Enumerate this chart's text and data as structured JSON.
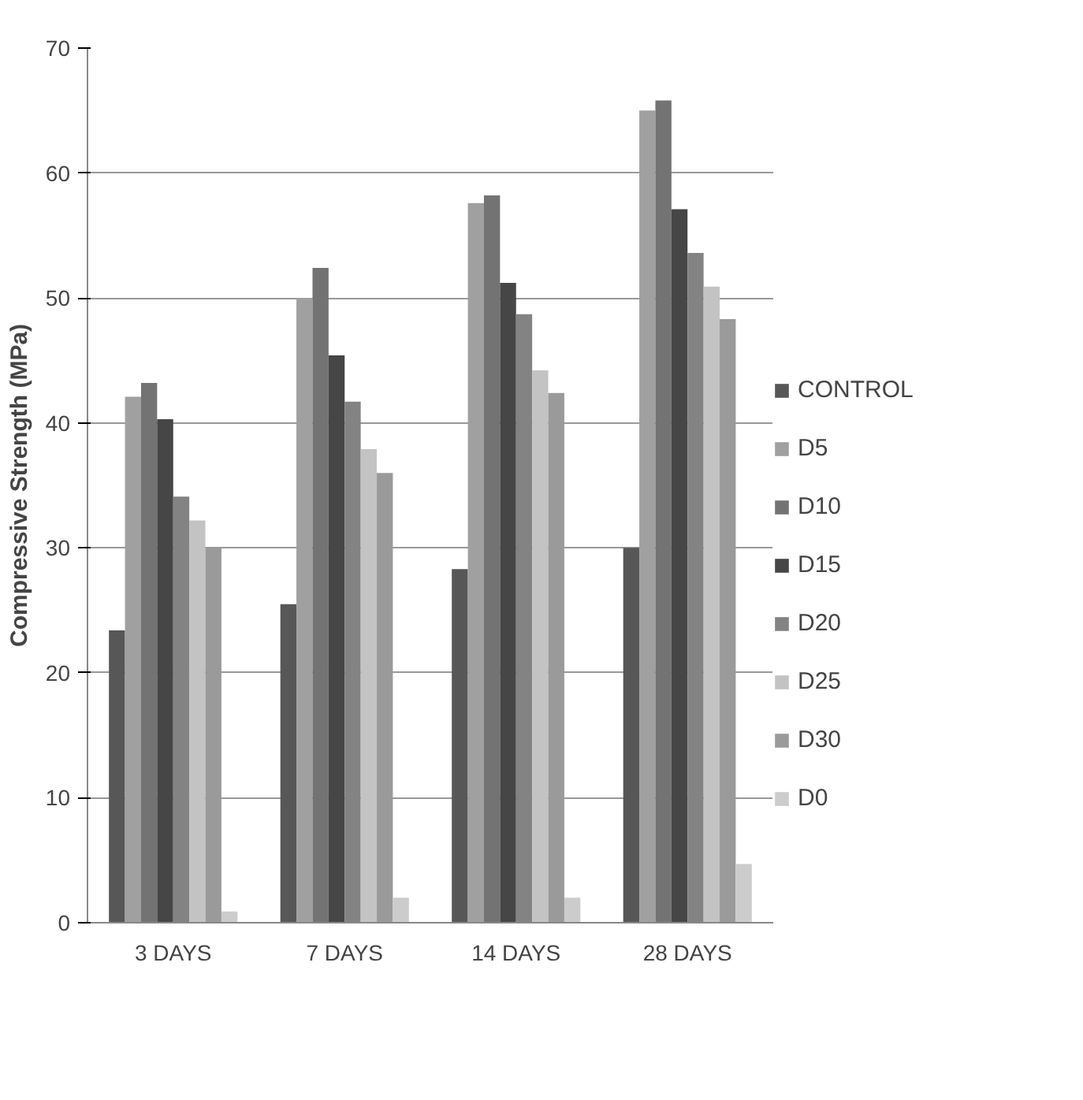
{
  "chart_data": {
    "type": "bar",
    "ylabel": "Compressive Strength (MPa)",
    "categories": [
      "3 DAYS",
      "7 DAYS",
      "14 DAYS",
      "28 DAYS"
    ],
    "series": [
      {
        "name": "CONTROL",
        "color": "#575757",
        "values": [
          23.4,
          25.5,
          28.3,
          30
        ]
      },
      {
        "name": "D5",
        "color": "#a0a0a0",
        "values": [
          42.1,
          50,
          57.6,
          65
        ]
      },
      {
        "name": "D10",
        "color": "#737373",
        "values": [
          43.2,
          52.4,
          58.2,
          65.8
        ]
      },
      {
        "name": "D15",
        "color": "#464646",
        "values": [
          40.3,
          45.4,
          51.2,
          57.1
        ]
      },
      {
        "name": "D20",
        "color": "#838383",
        "values": [
          34.1,
          41.7,
          48.7,
          53.6
        ]
      },
      {
        "name": "D25",
        "color": "#c3c3c3",
        "values": [
          32.2,
          37.9,
          44.2,
          50.9
        ]
      },
      {
        "name": "D30",
        "color": "#9a9a9a",
        "values": [
          30,
          36,
          42.4,
          48.3
        ]
      },
      {
        "name": "D0",
        "color": "#cccccc",
        "values": [
          0.9,
          2,
          2,
          4.7
        ]
      }
    ],
    "ylim": [
      0,
      70
    ],
    "yticks": [
      0,
      10,
      20,
      30,
      40,
      50,
      60,
      70
    ],
    "grid": "y",
    "legend": "right"
  }
}
